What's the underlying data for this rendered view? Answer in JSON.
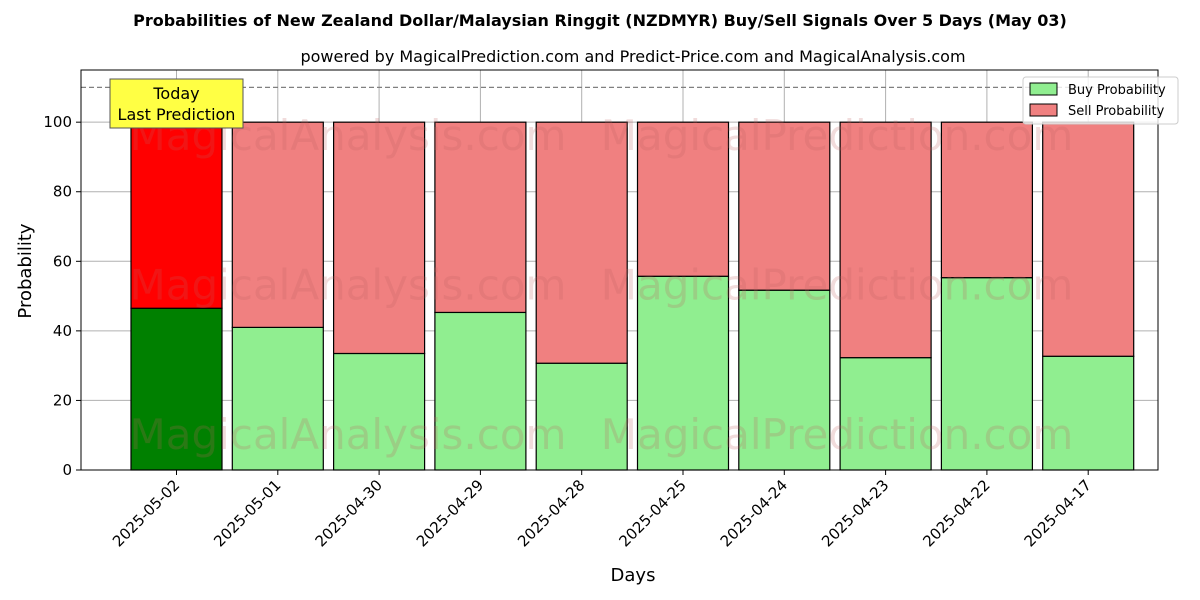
{
  "chart_data": {
    "type": "bar",
    "stacked": true,
    "title": "Probabilities of New Zealand Dollar/Malaysian Ringgit (NZDMYR) Buy/Sell Signals Over 5 Days (May 03)",
    "subtitle": "powered by MagicalPrediction.com and Predict-Price.com and MagicalAnalysis.com",
    "xlabel": "Days",
    "ylabel": "Probability",
    "ylim": [
      0,
      115
    ],
    "yticks": [
      0,
      20,
      40,
      60,
      80,
      100
    ],
    "reference_line": 110,
    "grid": true,
    "legend_position": "top-right",
    "categories": [
      "2025-05-02",
      "2025-05-01",
      "2025-04-30",
      "2025-04-29",
      "2025-04-28",
      "2025-04-25",
      "2025-04-24",
      "2025-04-23",
      "2025-04-22",
      "2025-04-17"
    ],
    "series": [
      {
        "name": "Buy Probability",
        "color": "#90ee90",
        "highlight_color": "#008000",
        "values": [
          46.5,
          41.0,
          33.5,
          45.3,
          30.7,
          55.7,
          51.7,
          32.3,
          55.3,
          32.7
        ]
      },
      {
        "name": "Sell Probability",
        "color": "#f08080",
        "highlight_color": "#ff0000",
        "values": [
          53.5,
          59.0,
          66.5,
          54.7,
          69.3,
          44.3,
          48.3,
          67.7,
          44.7,
          67.3
        ]
      }
    ],
    "annotation": {
      "line1": "Today",
      "line2": "Last Prediction",
      "color": "#ffff44"
    },
    "watermarks": [
      "MagicalAnalysis.com",
      "MagicalPrediction.com"
    ]
  }
}
